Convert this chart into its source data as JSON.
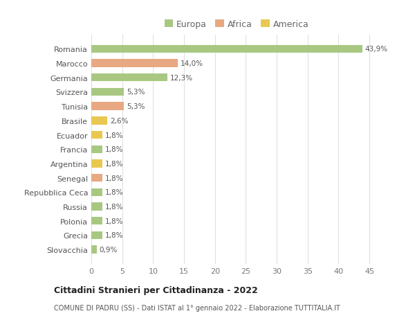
{
  "countries": [
    "Romania",
    "Marocco",
    "Germania",
    "Svizzera",
    "Tunisia",
    "Brasile",
    "Ecuador",
    "Francia",
    "Argentina",
    "Senegal",
    "Repubblica Ceca",
    "Russia",
    "Polonia",
    "Grecia",
    "Slovacchia"
  ],
  "values": [
    43.9,
    14.0,
    12.3,
    5.3,
    5.3,
    2.6,
    1.8,
    1.8,
    1.8,
    1.8,
    1.8,
    1.8,
    1.8,
    1.8,
    0.9
  ],
  "labels": [
    "43,9%",
    "14,0%",
    "12,3%",
    "5,3%",
    "5,3%",
    "2,6%",
    "1,8%",
    "1,8%",
    "1,8%",
    "1,8%",
    "1,8%",
    "1,8%",
    "1,8%",
    "1,8%",
    "0,9%"
  ],
  "continents": [
    "Europa",
    "Africa",
    "Europa",
    "Europa",
    "Africa",
    "America",
    "America",
    "Europa",
    "America",
    "Africa",
    "Europa",
    "Europa",
    "Europa",
    "Europa",
    "Europa"
  ],
  "colors": {
    "Europa": "#a8c882",
    "Africa": "#e8a882",
    "America": "#e8c850"
  },
  "title": "Cittadini Stranieri per Cittadinanza - 2022",
  "subtitle": "COMUNE DI PADRU (SS) - Dati ISTAT al 1° gennaio 2022 - Elaborazione TUTTITALIA.IT",
  "xlim": [
    0,
    47
  ],
  "xticks": [
    0,
    5,
    10,
    15,
    20,
    25,
    30,
    35,
    40,
    45
  ],
  "background_color": "#ffffff",
  "grid_color": "#e0e0e0"
}
